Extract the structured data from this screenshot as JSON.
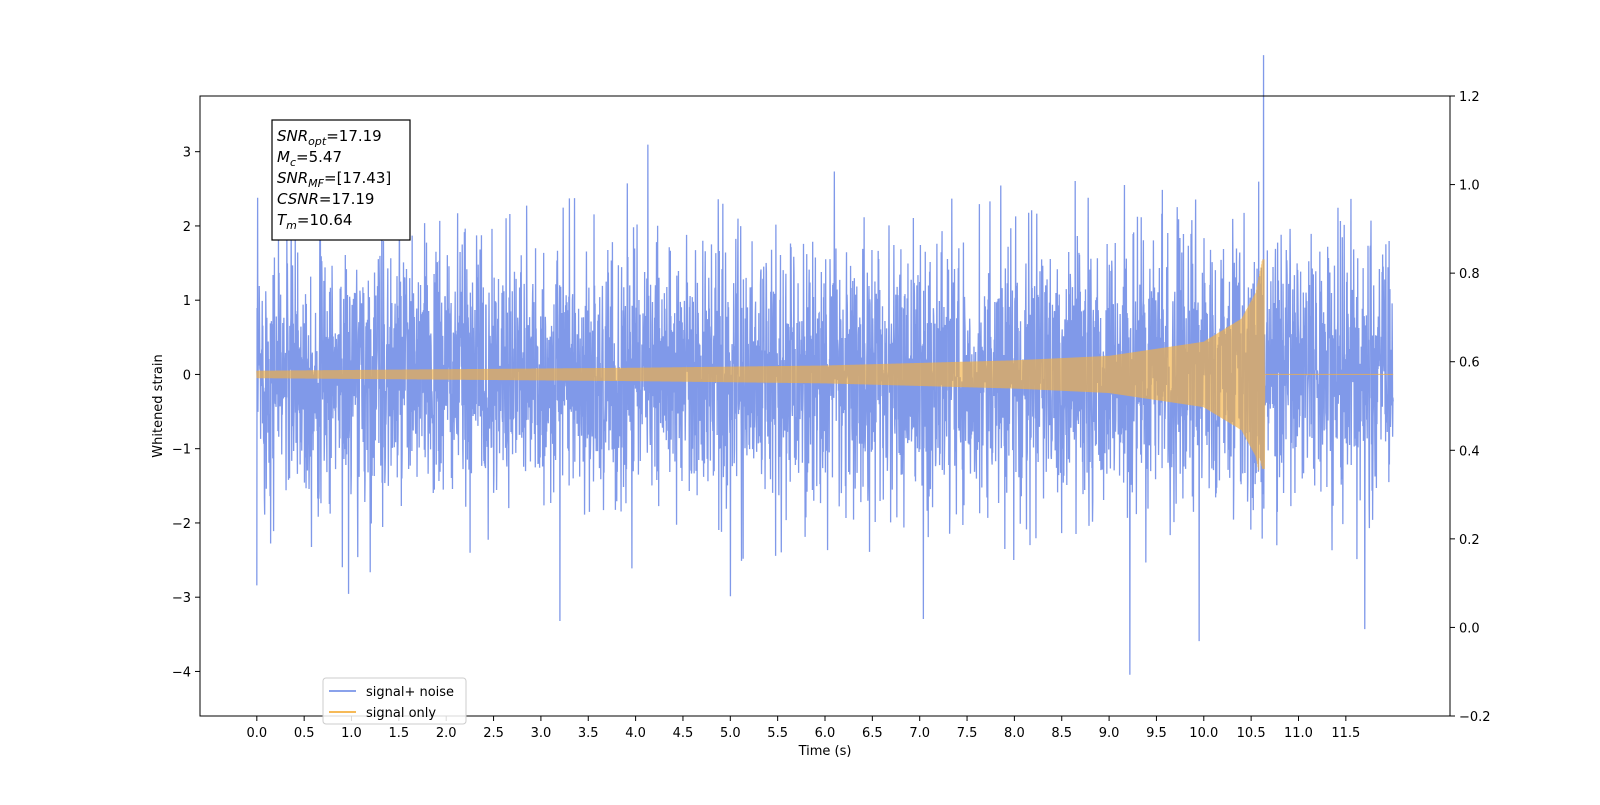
{
  "chart_data": {
    "type": "line",
    "xlabel": "Time (s)",
    "ylabel": "Whitened strain",
    "xlim": [
      -0.6,
      12.6
    ],
    "ylim": [
      -4.6,
      3.75
    ],
    "ylim_right": [
      -0.2,
      1.2
    ],
    "x_ticks": [
      "0.0",
      "0.5",
      "1.0",
      "1.5",
      "2.0",
      "2.5",
      "3.0",
      "3.5",
      "4.0",
      "4.5",
      "5.0",
      "5.5",
      "6.0",
      "6.5",
      "7.0",
      "7.5",
      "8.0",
      "8.5",
      "9.0",
      "9.5",
      "10.0",
      "10.5",
      "11.0",
      "11.5"
    ],
    "y_ticks": [
      "3",
      "2",
      "1",
      "0",
      "−1",
      "−2",
      "−3",
      "−4"
    ],
    "y_ticks_right": [
      "1.2",
      "1.0",
      "0.8",
      "0.6",
      "0.4",
      "0.2",
      "0.0",
      "−0.2"
    ],
    "series": [
      {
        "name": "signal+ noise",
        "color": "#7994e8",
        "x_range": [
          0.0,
          12.0
        ],
        "amplitude_envelope": 1.3,
        "peaks": [
          {
            "x": 0.0,
            "y": -2.87
          },
          {
            "x": 0.97,
            "y": -2.92
          },
          {
            "x": 1.32,
            "y": 2.82
          },
          {
            "x": 3.2,
            "y": -3.37
          },
          {
            "x": 4.13,
            "y": 3.15
          },
          {
            "x": 5.0,
            "y": -3.05
          },
          {
            "x": 7.04,
            "y": -3.2
          },
          {
            "x": 9.22,
            "y": -4.22
          },
          {
            "x": 9.95,
            "y": -3.85
          },
          {
            "x": 10.63,
            "y": 3.37
          },
          {
            "x": 11.7,
            "y": -3.43
          }
        ]
      },
      {
        "name": "signal only",
        "color": "#f5b041",
        "x_range": [
          0.0,
          12.0
        ],
        "merger_time": 10.64,
        "envelope": [
          {
            "x": 0.0,
            "y": 0.05
          },
          {
            "x": 2.0,
            "y": 0.07
          },
          {
            "x": 4.0,
            "y": 0.09
          },
          {
            "x": 6.0,
            "y": 0.12
          },
          {
            "x": 8.0,
            "y": 0.19
          },
          {
            "x": 9.0,
            "y": 0.25
          },
          {
            "x": 10.0,
            "y": 0.44
          },
          {
            "x": 10.4,
            "y": 0.75
          },
          {
            "x": 10.55,
            "y": 1.1
          },
          {
            "x": 10.62,
            "y": 1.55
          }
        ],
        "post_merger_value": 0.0
      }
    ],
    "legend": {
      "position": "lower-left",
      "entries": [
        "signal+ noise",
        "signal only"
      ]
    },
    "annotation_lines": [
      {
        "sym": "SNR",
        "sub": "opt",
        "val": "=17.19"
      },
      {
        "sym": "M",
        "sub": "c",
        "val": "=5.47"
      },
      {
        "sym": "SNR",
        "sub": "MF",
        "val": "=[17.43]"
      },
      {
        "sym": "CSNR",
        "sub": "",
        "val": "=17.19"
      },
      {
        "sym": "T",
        "sub": "m",
        "val": "=10.64"
      }
    ],
    "grid": false
  }
}
